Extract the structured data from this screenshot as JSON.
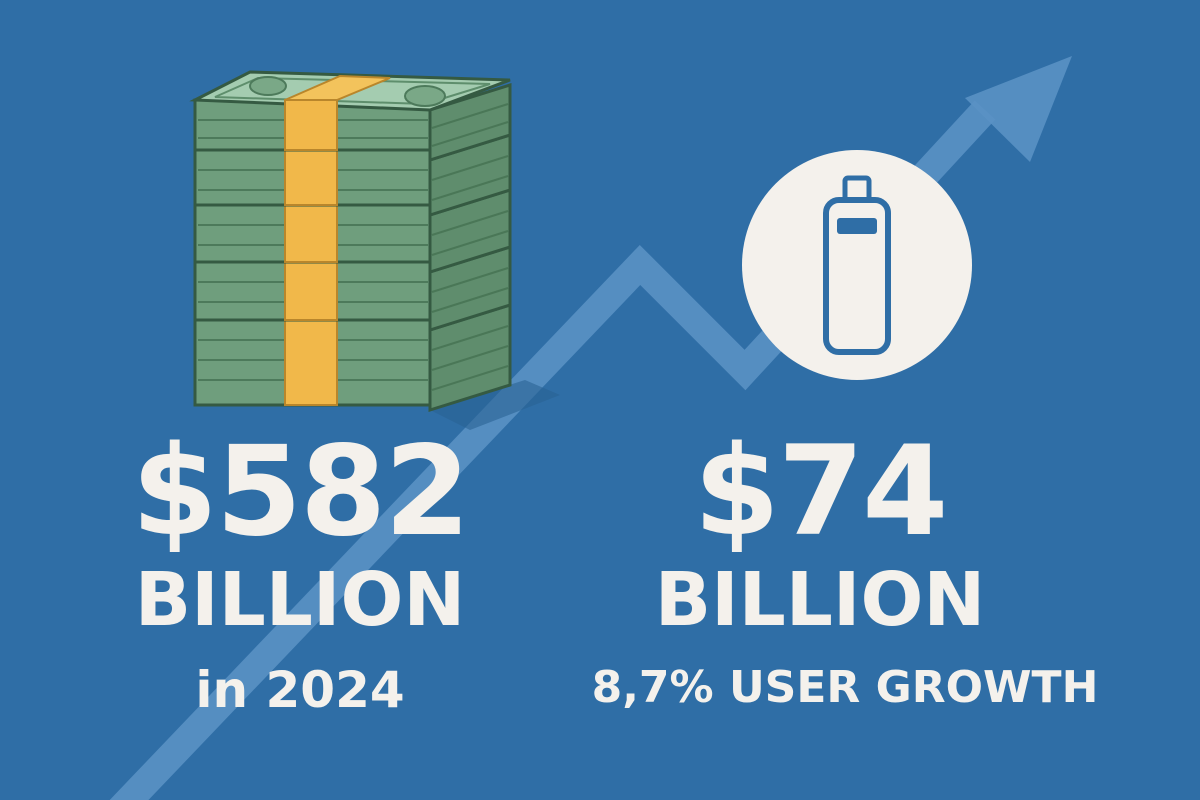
{
  "colors": {
    "background": "#2f6ea6",
    "text": "#f4f1ec",
    "arrow": "#5a91c4",
    "bill_green": "#7aa887",
    "bill_dark": "#3e6a4d",
    "band_yellow": "#f1b84a",
    "bottle_outline": "#2f6ea6"
  },
  "left_stat": {
    "icon": "money-stack-icon",
    "amount": "$582",
    "unit": "BILLION",
    "subtitle": "in 2024"
  },
  "right_stat": {
    "icon": "bottle-icon",
    "amount": "$74",
    "unit": "BILLION",
    "subtitle": "8,7% USER GROWTH"
  },
  "background_icon": "upward-trend-arrow-icon"
}
